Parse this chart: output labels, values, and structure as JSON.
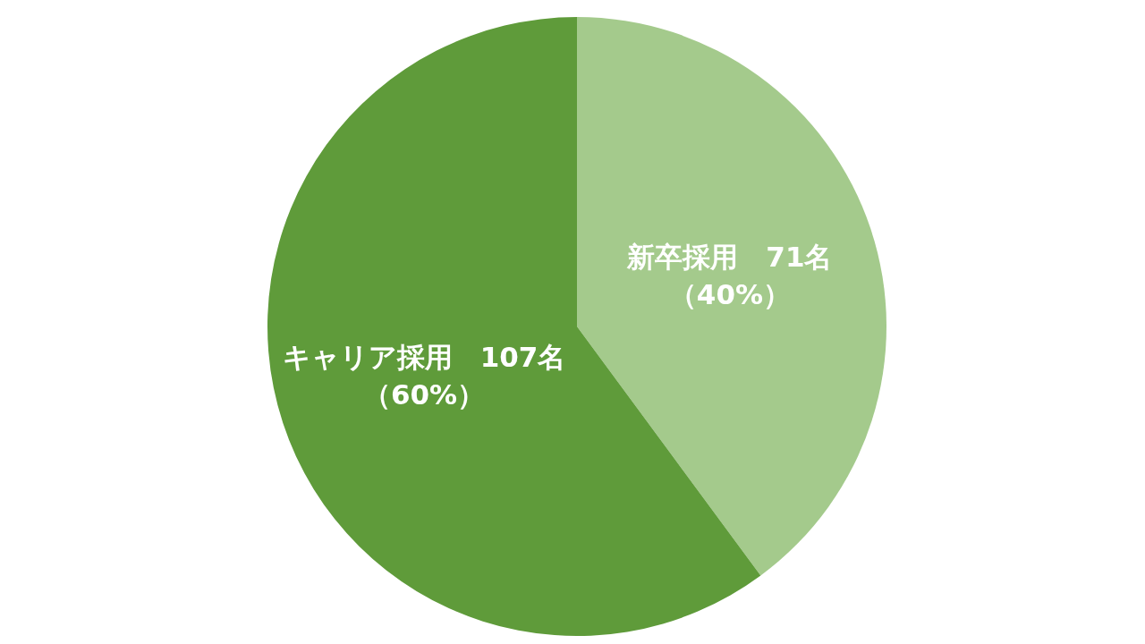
{
  "chart_data": {
    "type": "pie",
    "categories": [
      "新卒採用",
      "キャリア採用"
    ],
    "values": [
      71,
      107
    ],
    "colors": [
      "#a4ca8c",
      "#5f9b3a"
    ],
    "value_labels": [
      "71名（40%）",
      "107名（60%）"
    ]
  }
}
